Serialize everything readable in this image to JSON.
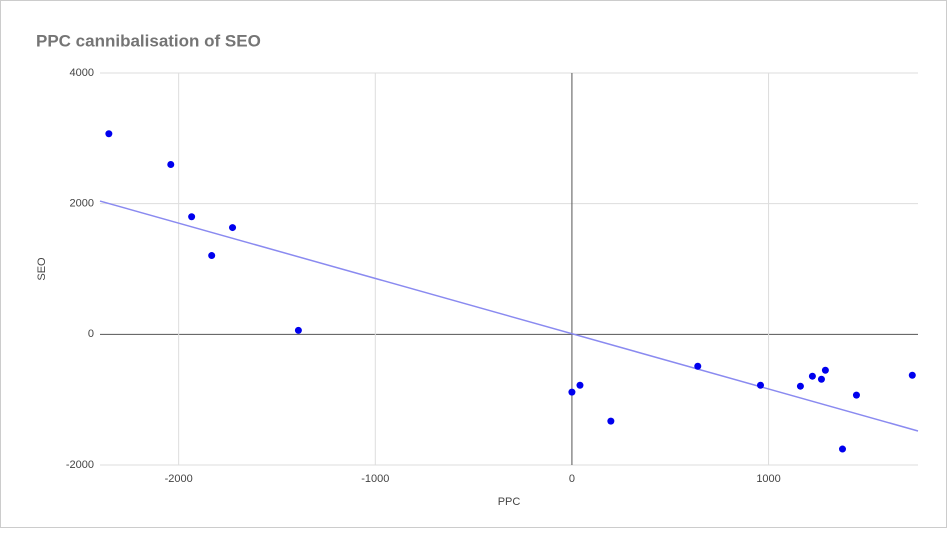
{
  "chart_data": {
    "type": "scatter",
    "title": "PPC cannibalisation of SEO",
    "x_label": "PPC",
    "y_label": "SEO",
    "x": [
      -2355,
      -2040,
      -1934,
      -1726,
      -1832,
      -1391,
      0,
      41,
      198,
      640,
      959,
      1162,
      1223,
      1269,
      1289,
      1447,
      1376,
      1731
    ],
    "values": [
      3070,
      2600,
      1800,
      1634,
      1206,
      61,
      -885,
      -779,
      -1328,
      -489,
      -779,
      -794,
      -641,
      -687,
      -550,
      -931,
      -1756,
      -626
    ],
    "color": "#0000ee",
    "trendline": true,
    "trendline_color": "#8a8af0",
    "xlim": [
      -2400,
      1760
    ],
    "ylim": [
      -2000,
      4000
    ],
    "xticks": [
      -2000,
      -1000,
      0,
      1000
    ],
    "yticks": [
      -2000,
      0,
      2000,
      4000
    ],
    "grid": true
  }
}
